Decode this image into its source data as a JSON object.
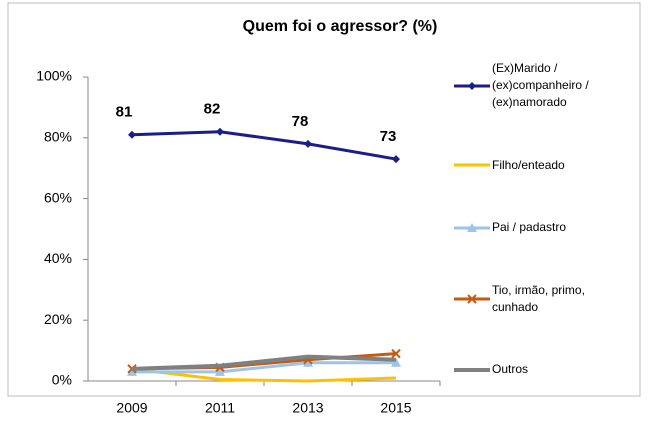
{
  "chart_data": {
    "type": "line",
    "title": "Quem foi o agressor? (%)",
    "categories": [
      "2009",
      "2011",
      "2013",
      "2015"
    ],
    "series": [
      {
        "name": "(Ex)Marido / (ex)companheiro / (ex)namorado",
        "color": "#1c1c8a",
        "marker": "diamond",
        "data_labels": true,
        "values": [
          81,
          82,
          78,
          73
        ]
      },
      {
        "name": "Filho/enteado",
        "color": "#ffc000",
        "marker": "none",
        "values": [
          4,
          0.5,
          0,
          1
        ]
      },
      {
        "name": "Pai / padastro",
        "color": "#9dc3e6",
        "marker": "triangle",
        "values": [
          3,
          3,
          6,
          6
        ]
      },
      {
        "name": "Tio, irmão, primo, cunhado",
        "color": "#c55a11",
        "marker": "x",
        "values": [
          4,
          4.5,
          7,
          9
        ]
      },
      {
        "name": "Outros",
        "color": "#808080",
        "marker": "none",
        "width": 4,
        "values": [
          4,
          5,
          8,
          7
        ]
      }
    ],
    "ylim": [
      0,
      100
    ],
    "yticks": [
      {
        "value": 0,
        "label": "0%"
      },
      {
        "value": 20,
        "label": "20%"
      },
      {
        "value": 40,
        "label": "40%"
      },
      {
        "value": 60,
        "label": "60%"
      },
      {
        "value": 80,
        "label": "80%"
      },
      {
        "value": 100,
        "label": "100%"
      }
    ],
    "grid": false,
    "legend": "right"
  }
}
